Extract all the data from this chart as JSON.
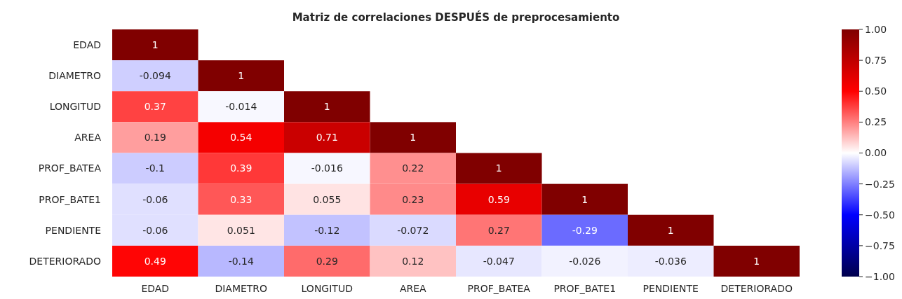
{
  "chart_data": {
    "type": "heatmap",
    "title": "Matriz de correlaciones DESPUÉS de preprocesamiento",
    "categories": [
      "EDAD",
      "DIAMETRO",
      "LONGITUD",
      "AREA",
      "PROF_BATEA",
      "PROF_BATE1",
      "PENDIENTE",
      "DETERIORADO"
    ],
    "y_categories": [
      "EDAD",
      "DIAMETRO",
      "LONGITUD",
      "AREA",
      "PROF_BATEA",
      "PROF_BATE1",
      "PENDIENTE",
      "DETERIORADO"
    ],
    "cells": [
      [
        1,
        null,
        null,
        null,
        null,
        null,
        null,
        null
      ],
      [
        -0.094,
        1,
        null,
        null,
        null,
        null,
        null,
        null
      ],
      [
        0.37,
        -0.014,
        1,
        null,
        null,
        null,
        null,
        null
      ],
      [
        0.19,
        0.54,
        0.71,
        1,
        null,
        null,
        null,
        null
      ],
      [
        -0.1,
        0.39,
        -0.016,
        0.22,
        1,
        null,
        null,
        null
      ],
      [
        -0.06,
        0.33,
        0.055,
        0.23,
        0.59,
        1,
        null,
        null
      ],
      [
        -0.06,
        0.051,
        -0.12,
        -0.072,
        0.27,
        -0.29,
        1,
        null
      ],
      [
        0.49,
        -0.14,
        0.29,
        0.12,
        -0.047,
        -0.026,
        -0.036,
        1
      ]
    ],
    "data_labels": true,
    "clim": [
      -1,
      1
    ],
    "cticks": [
      {
        "value": -1,
        "label": "−1.00"
      },
      {
        "value": -0.75,
        "label": "−0.75"
      },
      {
        "value": -0.5,
        "label": "−0.50"
      },
      {
        "value": -0.25,
        "label": "−0.25"
      },
      {
        "value": 0,
        "label": "0.00"
      },
      {
        "value": 0.25,
        "label": "0.25"
      },
      {
        "value": 0.5,
        "label": "0.50"
      },
      {
        "value": 0.75,
        "label": "0.75"
      },
      {
        "value": 1,
        "label": "1.00"
      }
    ]
  }
}
